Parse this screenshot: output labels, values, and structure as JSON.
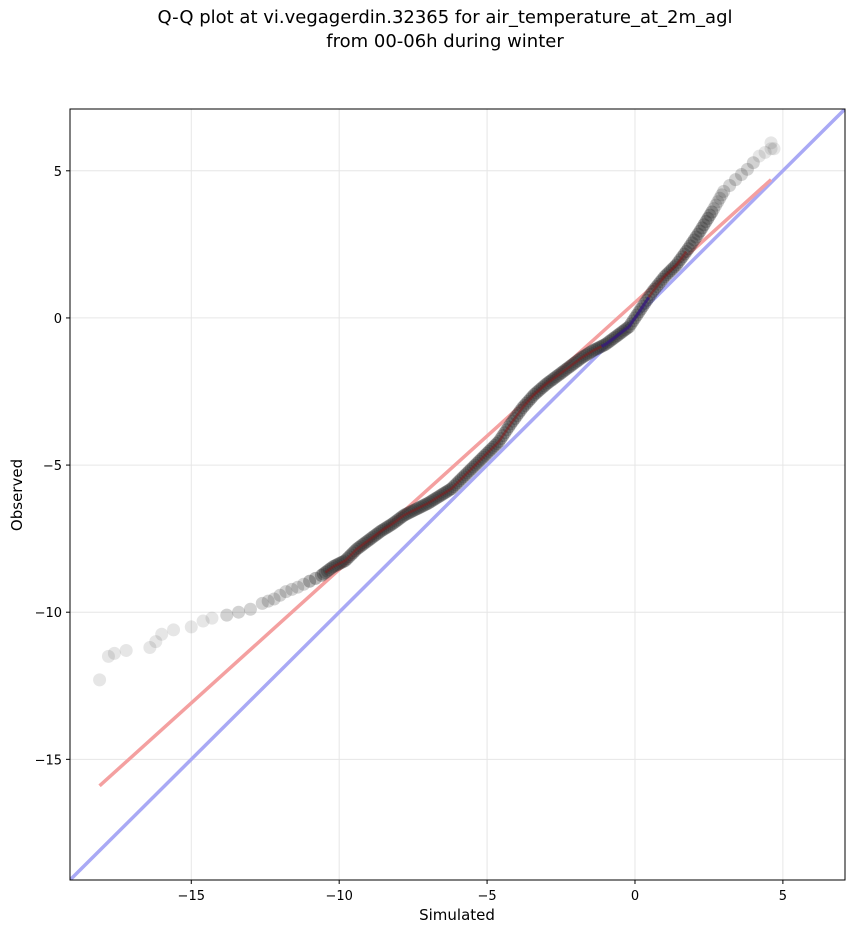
{
  "chart_data": {
    "type": "scatter",
    "title": [
      "Q-Q plot at vi.vegagerdin.32365 for air_temperature_at_2m_agl",
      "from 00-06h during winter"
    ],
    "xlabel": "Simulated",
    "ylabel": "Observed",
    "xlim": [
      -19.1,
      7.1
    ],
    "ylim": [
      -19.1,
      7.1
    ],
    "xticks": [
      -15,
      -10,
      -5,
      0,
      5
    ],
    "yticks": [
      -15,
      -10,
      -5,
      0,
      5
    ],
    "xtick_labels": [
      "−15",
      "−10",
      "−5",
      "0",
      "5"
    ],
    "ytick_labels": [
      "−15",
      "−10",
      "−5",
      "0",
      "5"
    ],
    "grid": true,
    "series": [
      {
        "role": "quantiles",
        "color": "#303030",
        "x": [
          -18.1,
          -17.8,
          -17.6,
          -17.2,
          -16.4,
          -16.2,
          -16.0,
          -15.6,
          -15.0,
          -14.6,
          -14.3,
          -13.8,
          -13.4,
          -13.0,
          -12.6,
          -12.2,
          -11.8,
          -11.4,
          -11.0,
          -10.6,
          -10.2,
          -9.8,
          -9.4,
          -9.0,
          -8.6,
          -8.2,
          -7.8,
          -7.4,
          -7.0,
          -6.6,
          -6.2,
          -5.8,
          -5.4,
          -5.0,
          -4.6,
          -4.2,
          -3.8,
          -3.4,
          -3.0,
          -2.6,
          -2.2,
          -1.8,
          -1.4,
          -1.0,
          -0.6,
          -0.2,
          0.2,
          0.6,
          1.0,
          1.4,
          1.8,
          2.2,
          2.6,
          3.0,
          3.4,
          3.8,
          4.2,
          4.6
        ],
        "y": [
          -12.3,
          -11.5,
          -11.4,
          -11.3,
          -11.2,
          -11.0,
          -10.75,
          -10.6,
          -10.5,
          -10.3,
          -10.2,
          -10.1,
          -10.0,
          -9.9,
          -9.7,
          -9.55,
          -9.3,
          -9.15,
          -8.95,
          -8.75,
          -8.45,
          -8.25,
          -7.85,
          -7.55,
          -7.25,
          -7.0,
          -6.7,
          -6.5,
          -6.3,
          -6.05,
          -5.8,
          -5.4,
          -5.0,
          -4.6,
          -4.2,
          -3.6,
          -3.05,
          -2.6,
          -2.25,
          -1.95,
          -1.65,
          -1.35,
          -1.1,
          -0.9,
          -0.6,
          -0.3,
          0.3,
          0.9,
          1.4,
          1.8,
          2.35,
          2.95,
          3.6,
          4.3,
          4.7,
          5.05,
          5.5,
          5.75
        ],
        "extra_points": [
          [
            4.7,
            5.75
          ],
          [
            4.6,
            5.95
          ]
        ]
      },
      {
        "role": "fit-line",
        "color": "#f4a0a0",
        "x": [
          -18.1,
          4.6
        ],
        "y": [
          -15.9,
          4.7
        ]
      },
      {
        "role": "identity-line",
        "color": "#a9a9f5",
        "x": [
          -19.1,
          7.1
        ],
        "y": [
          -19.1,
          7.1
        ]
      }
    ]
  }
}
